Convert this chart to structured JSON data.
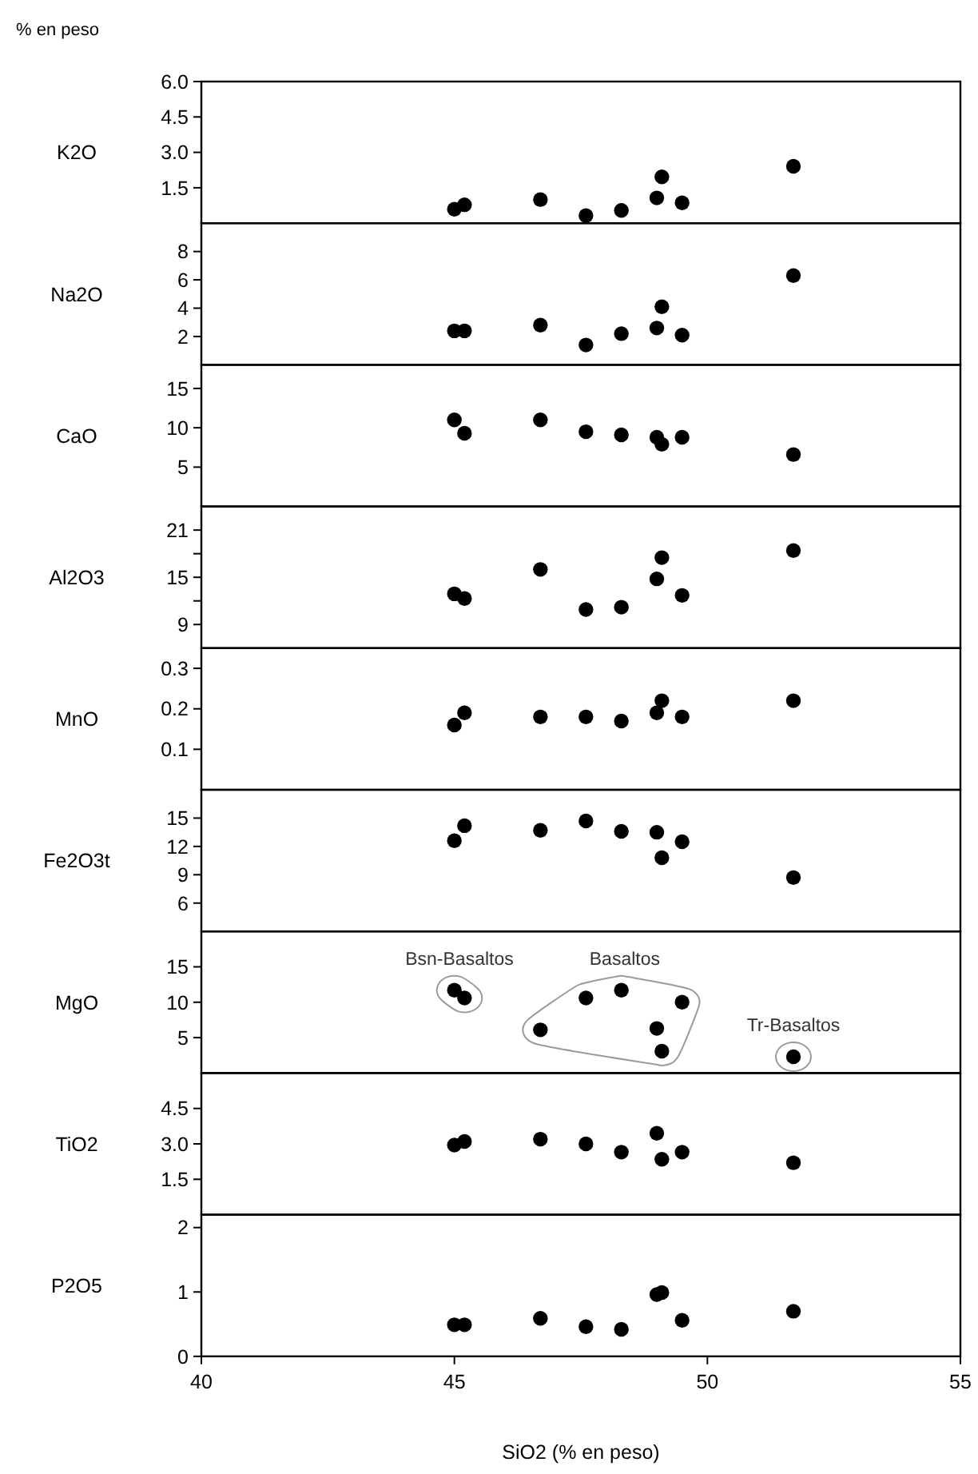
{
  "chart_data": [
    {
      "type": "scatter",
      "title": "% en peso",
      "ylabel": "K2O",
      "x": [
        45.0,
        45.2,
        46.7,
        47.6,
        48.3,
        49.0,
        49.1,
        49.5,
        51.7
      ],
      "values": [
        0.59,
        0.78,
        1.0,
        0.32,
        0.54,
        1.07,
        1.96,
        0.86,
        2.41
      ],
      "color": "#000000",
      "marker": "circle",
      "xlim": [
        40,
        55
      ],
      "ylim": [
        0,
        6
      ],
      "yticks": [
        {
          "value": 1.5,
          "label": "1.5"
        },
        {
          "value": 3,
          "label": "3.0"
        },
        {
          "value": 4.5,
          "label": "4.5"
        },
        {
          "value": 6,
          "label": "6.0"
        }
      ],
      "tick_labels": "y"
    },
    {
      "type": "scatter",
      "ylabel": "Na2O",
      "x": [
        45.0,
        45.2,
        46.7,
        47.6,
        48.3,
        49.0,
        49.1,
        49.5,
        51.7
      ],
      "values": [
        2.4,
        2.4,
        2.8,
        1.4,
        2.2,
        2.6,
        4.1,
        2.1,
        6.3
      ],
      "color": "#000000",
      "marker": "circle",
      "xlim": [
        40,
        55
      ],
      "ylim": [
        0,
        10
      ],
      "yticks": [
        2,
        4,
        6,
        8
      ],
      "tick_labels": "y"
    },
    {
      "type": "scatter",
      "ylabel": "CaO",
      "x": [
        45.0,
        45.2,
        46.7,
        47.6,
        48.3,
        49.0,
        49.1,
        49.5,
        51.7
      ],
      "values": [
        11.0,
        9.3,
        11.0,
        9.5,
        9.1,
        8.8,
        7.9,
        8.8,
        6.6
      ],
      "color": "#000000",
      "marker": "circle",
      "xlim": [
        40,
        55
      ],
      "ylim": [
        0,
        18
      ],
      "yticks": [
        5,
        10,
        15
      ],
      "tick_labels": "y"
    },
    {
      "type": "scatter",
      "ylabel": "Al2O3",
      "x": [
        45.0,
        45.2,
        46.7,
        47.6,
        48.3,
        49.0,
        49.1,
        49.5,
        51.7
      ],
      "values": [
        12.9,
        12.3,
        16.0,
        10.9,
        11.2,
        14.8,
        17.5,
        12.7,
        18.4
      ],
      "color": "#000000",
      "marker": "circle",
      "xlim": [
        40,
        55
      ],
      "ylim": [
        6,
        24
      ],
      "yticks": [
        9,
        {
          "value": 12,
          "label": null
        },
        15,
        {
          "value": 18,
          "label": null
        },
        21
      ],
      "tick_labels": "y"
    },
    {
      "type": "scatter",
      "ylabel": "MnO",
      "x": [
        45.0,
        45.2,
        46.7,
        47.6,
        48.3,
        49.0,
        49.1,
        49.5,
        51.7
      ],
      "values": [
        0.16,
        0.19,
        0.18,
        0.18,
        0.17,
        0.19,
        0.22,
        0.18,
        0.22
      ],
      "color": "#000000",
      "marker": "circle",
      "xlim": [
        40,
        55
      ],
      "ylim": [
        0,
        0.35
      ],
      "yticks": [
        0.1,
        0.2,
        0.3
      ],
      "tick_labels": "y"
    },
    {
      "type": "scatter",
      "ylabel": "Fe2O3t",
      "x": [
        45.0,
        45.2,
        46.7,
        47.6,
        48.3,
        49.0,
        49.1,
        49.5,
        51.7
      ],
      "values": [
        12.6,
        14.2,
        13.7,
        14.7,
        13.6,
        13.5,
        10.8,
        12.5,
        8.7
      ],
      "color": "#000000",
      "marker": "circle",
      "xlim": [
        40,
        55
      ],
      "ylim": [
        3,
        18
      ],
      "yticks": [
        6,
        9,
        12,
        15
      ],
      "tick_labels": "y"
    },
    {
      "type": "scatter",
      "ylabel": "MgO",
      "x": [
        45.0,
        45.2,
        46.7,
        47.6,
        48.3,
        49.0,
        49.1,
        49.5,
        51.7
      ],
      "values": [
        11.7,
        10.6,
        6.1,
        10.6,
        11.7,
        6.3,
        3.1,
        10.0,
        2.3
      ],
      "color": "#000000",
      "marker": "circle",
      "xlim": [
        40,
        55
      ],
      "ylim": [
        0,
        20
      ],
      "yticks": [
        5,
        10,
        15
      ],
      "tick_labels": "y",
      "annotations": [
        "Bsn-Basaltos",
        "Basaltos",
        "Tr-Basaltos"
      ]
    },
    {
      "type": "scatter",
      "ylabel": "TiO2",
      "x": [
        45.0,
        45.2,
        46.7,
        47.6,
        48.3,
        49.0,
        49.1,
        49.5,
        51.7
      ],
      "values": [
        2.95,
        3.1,
        3.2,
        3.0,
        2.65,
        3.45,
        2.35,
        2.65,
        2.2
      ],
      "color": "#000000",
      "marker": "circle",
      "xlim": [
        40,
        55
      ],
      "ylim": [
        0,
        6
      ],
      "yticks": [
        {
          "value": 1.5,
          "label": "1.5"
        },
        {
          "value": 3,
          "label": "3.0"
        },
        {
          "value": 4.5,
          "label": "4.5"
        }
      ],
      "tick_labels": "y"
    },
    {
      "type": "scatter",
      "ylabel": "P2O5",
      "xlabel": "SiO2 (% en peso)",
      "x": [
        45.0,
        45.2,
        46.7,
        47.6,
        48.3,
        49.0,
        49.1,
        49.5,
        51.7
      ],
      "values": [
        0.49,
        0.49,
        0.59,
        0.46,
        0.42,
        0.96,
        0.99,
        0.56,
        0.7
      ],
      "color": "#000000",
      "marker": "circle",
      "xlim": [
        40,
        55
      ],
      "ylim": [
        0,
        2.2
      ],
      "yticks": [
        0,
        1,
        2
      ],
      "xticks": [
        40,
        45,
        50,
        55
      ]
    }
  ]
}
